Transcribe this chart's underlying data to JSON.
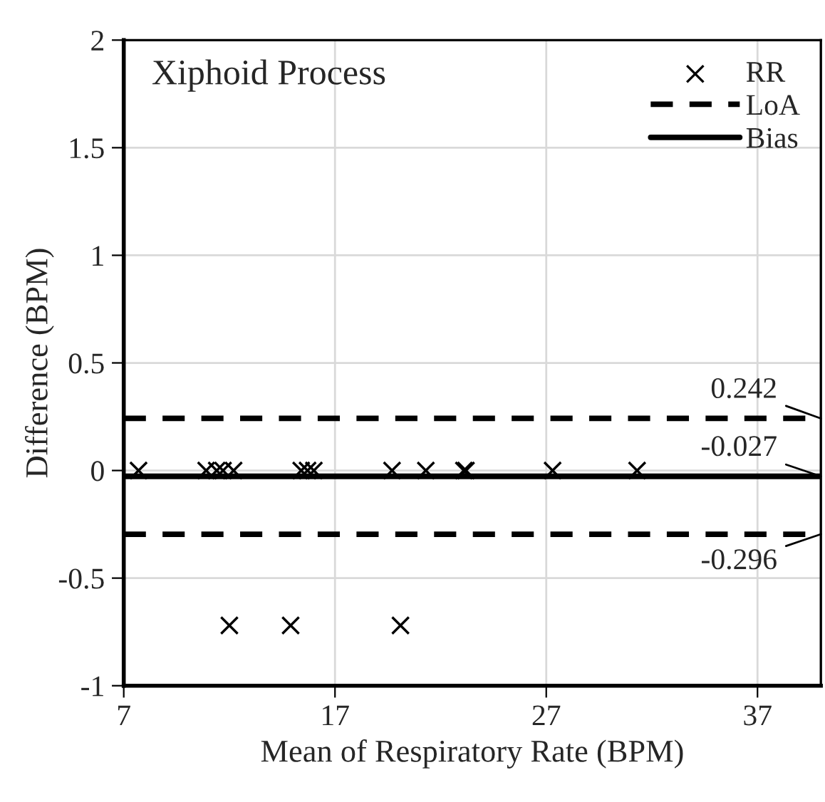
{
  "chart_data": {
    "type": "scatter",
    "title": "Xiphoid Process",
    "xlabel": "Mean of Respiratory Rate (BPM)",
    "ylabel": "Difference (BPM)",
    "xlim": [
      7,
      40
    ],
    "xticks": [
      7,
      17,
      27,
      37
    ],
    "ylim": [
      -1,
      2
    ],
    "yticks": [
      -1,
      -0.5,
      0,
      0.5,
      1,
      1.5,
      2
    ],
    "grid": true,
    "legend": "top right",
    "series": [
      {
        "name": "RR",
        "type": "scatter",
        "marker": "cross",
        "color": "#000000",
        "x": [
          7.7,
          10.9,
          11.4,
          11.7,
          12.2,
          15.4,
          15.7,
          16.0,
          19.7,
          21.3,
          23.1,
          23.2,
          27.3,
          31.3,
          12.0,
          14.9,
          20.1
        ],
        "values": [
          0,
          0,
          0,
          0,
          0,
          0,
          0,
          0,
          0,
          0,
          0,
          0,
          0,
          0,
          -0.72,
          -0.72,
          -0.72
        ]
      },
      {
        "name": "LoA",
        "type": "line",
        "line_style": "dashed",
        "color": "#000000",
        "x": [
          7,
          40
        ],
        "values": [
          0.242,
          0.242
        ]
      },
      {
        "type": "line",
        "line_style": "dashed",
        "color": "#000000",
        "x": [
          7,
          40
        ],
        "values": [
          -0.296,
          -0.296
        ]
      },
      {
        "name": "Bias",
        "type": "line",
        "line_style": "solid",
        "color": "#000000",
        "x": [
          7,
          40
        ],
        "values": [
          -0.027,
          -0.027
        ]
      }
    ],
    "annotations": [
      {
        "text": "0.242",
        "y": 0.242
      },
      {
        "text": "-0.027",
        "y": -0.027
      },
      {
        "text": "-0.296",
        "y": -0.296
      }
    ]
  }
}
